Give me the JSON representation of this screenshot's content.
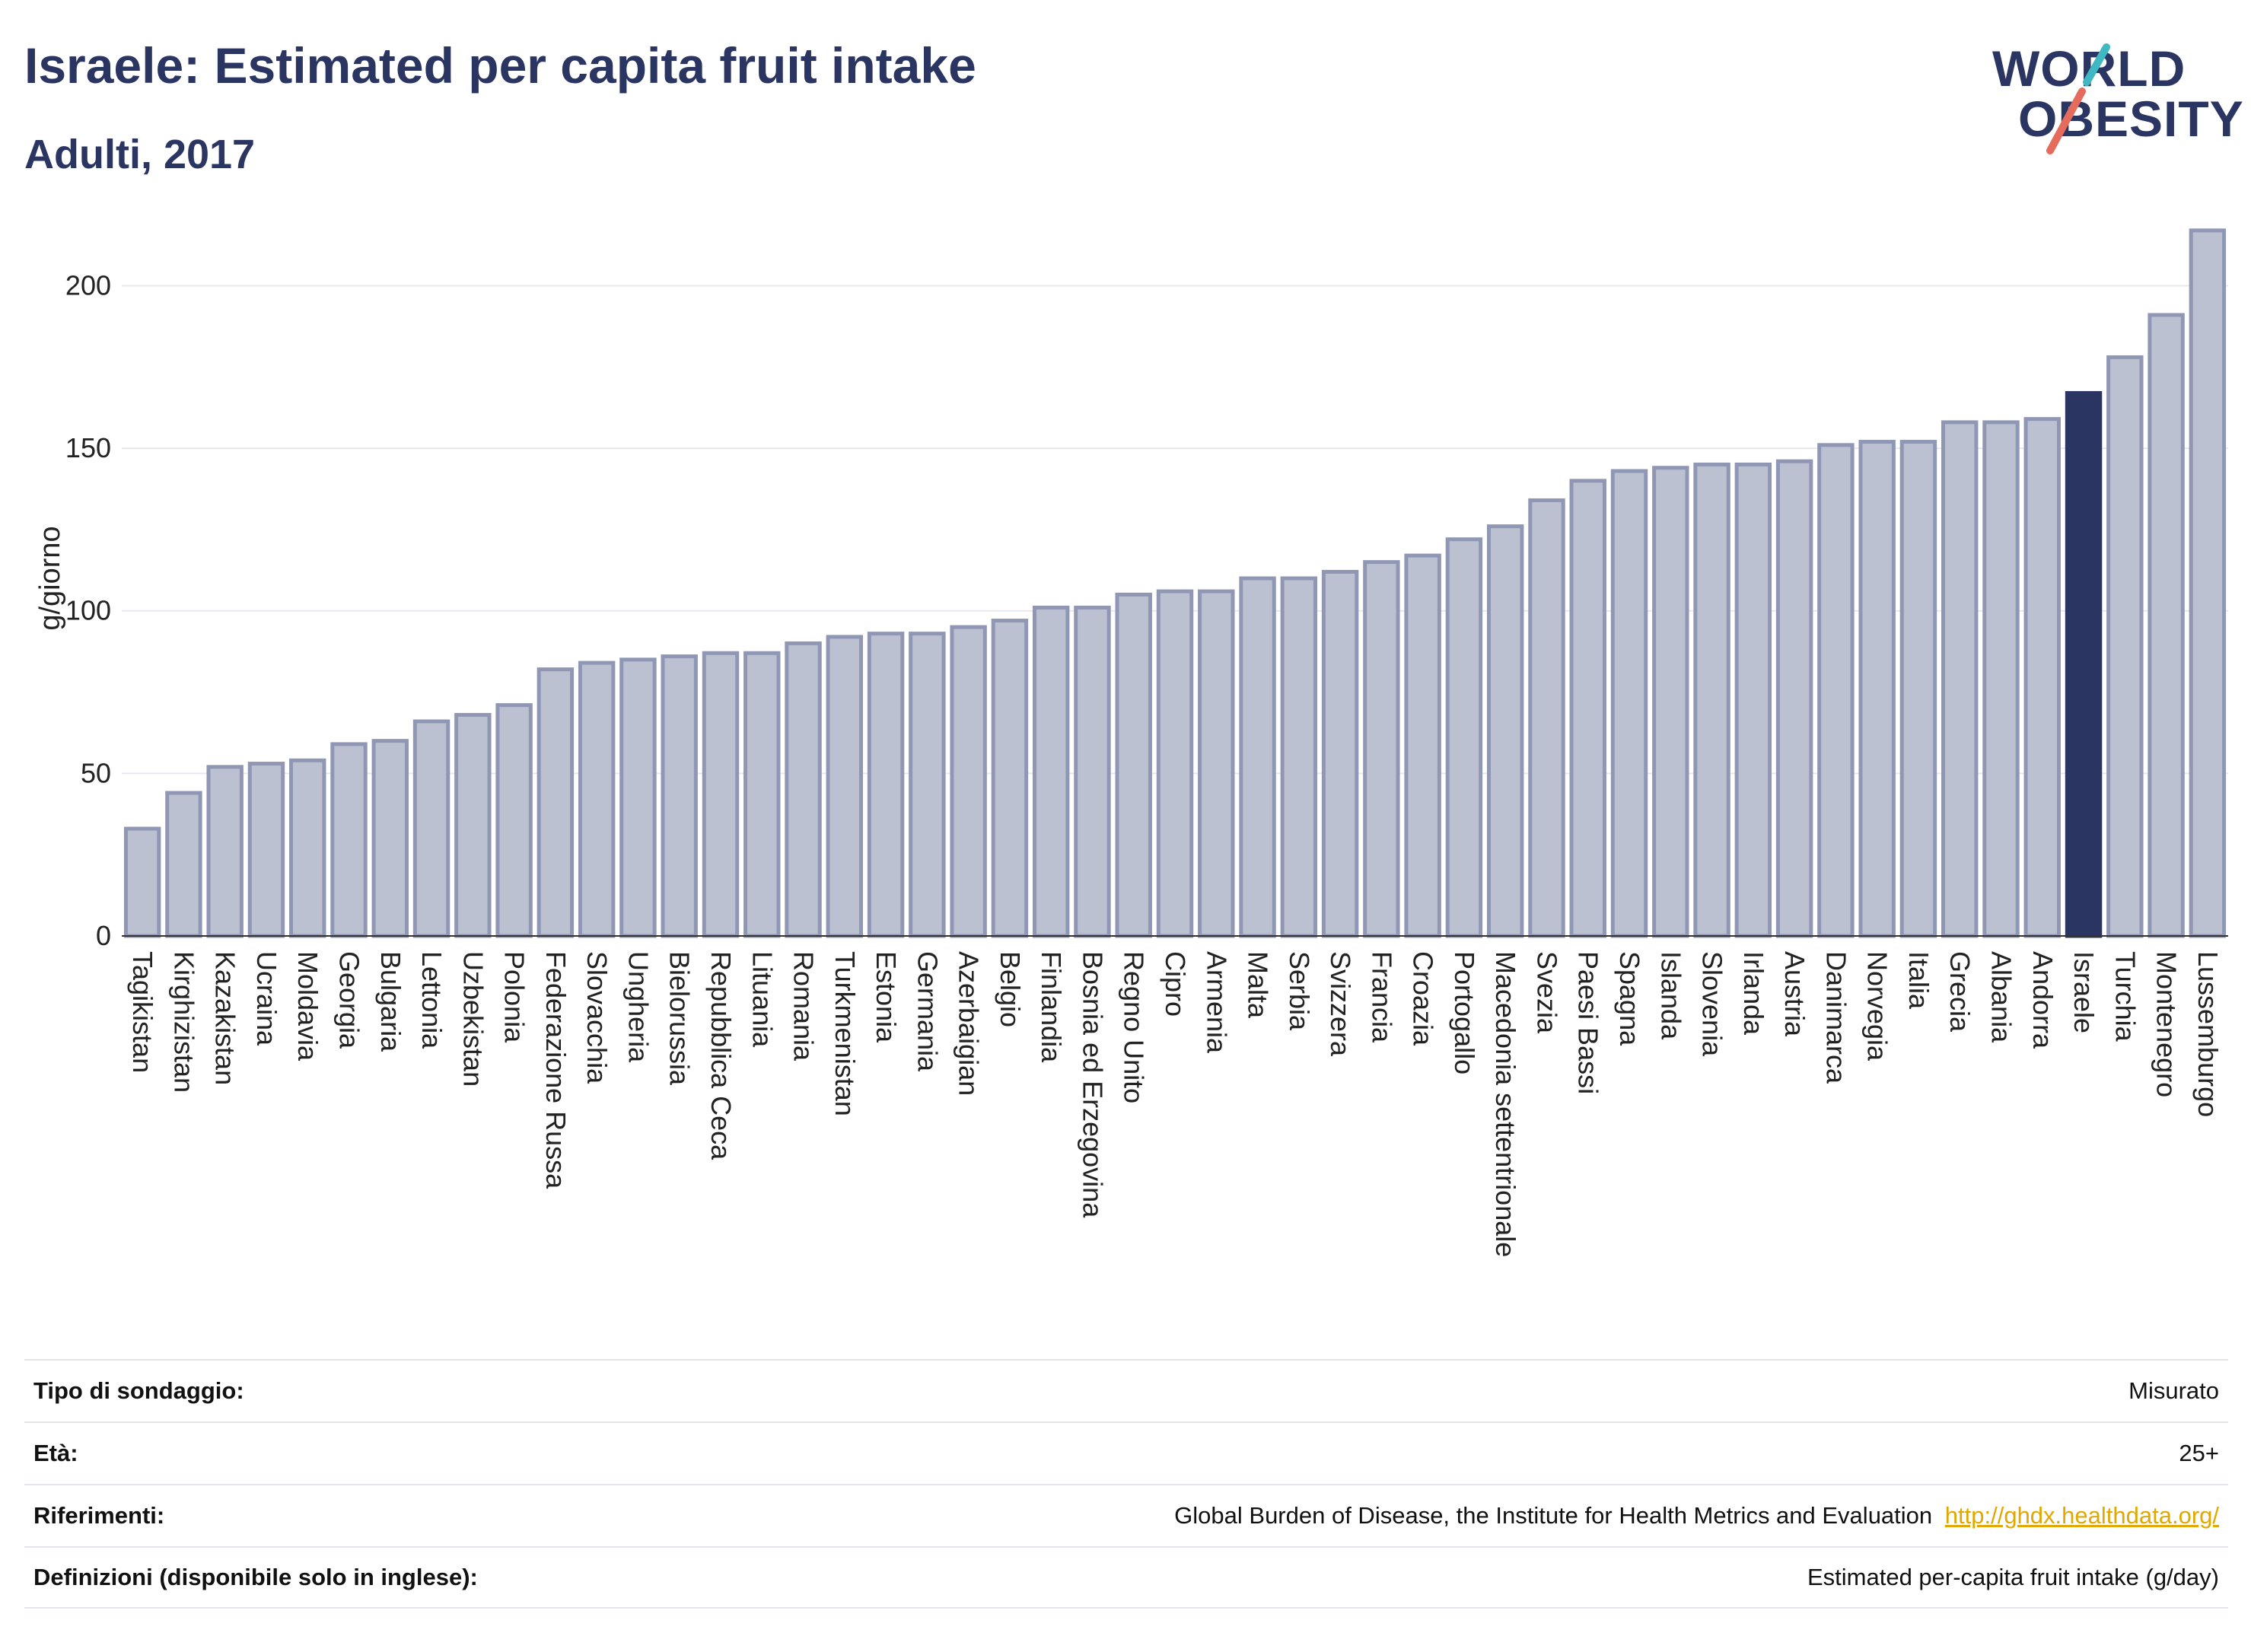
{
  "header": {
    "title": "Israele: Estimated per capita fruit intake",
    "subtitle": "Adulti, 2017"
  },
  "logo": {
    "line1": "WORLD",
    "line2": "OBESITY",
    "accent_teal": "#3fb8c1",
    "accent_coral": "#e56b5d"
  },
  "colors": {
    "bar_fill": "#bcc1d1",
    "bar_stroke": "#8f97b4",
    "highlight": "#2b3561",
    "grid": "#e8e9ee"
  },
  "chart_data": {
    "type": "bar",
    "ylabel": "g/giorno",
    "ylim": [
      0,
      220
    ],
    "yticks": [
      0,
      50,
      100,
      150,
      200
    ],
    "highlight": "Israele",
    "categories": [
      "Tagikistan",
      "Kirghizistan",
      "Kazakistan",
      "Ucraina",
      "Moldavia",
      "Georgia",
      "Bulgaria",
      "Lettonia",
      "Uzbekistan",
      "Polonia",
      "Federazione Russa",
      "Slovacchia",
      "Ungheria",
      "Bielorussia",
      "Repubblica Ceca",
      "Lituania",
      "Romania",
      "Turkmenistan",
      "Estonia",
      "Germania",
      "Azerbaigian",
      "Belgio",
      "Finlandia",
      "Bosnia ed Erzegovina",
      "Regno Unito",
      "Cipro",
      "Armenia",
      "Malta",
      "Serbia",
      "Svizzera",
      "Francia",
      "Croazia",
      "Portogallo",
      "Macedonia settentrionale",
      "Svezia",
      "Paesi Bassi",
      "Spagna",
      "Islanda",
      "Slovenia",
      "Irlanda",
      "Austria",
      "Danimarca",
      "Norvegia",
      "Italia",
      "Grecia",
      "Albania",
      "Andorra",
      "Israele",
      "Turchia",
      "Montenegro",
      "Lussemburgo"
    ],
    "values": [
      33,
      44,
      52,
      53,
      54,
      59,
      60,
      66,
      68,
      71,
      82,
      84,
      85,
      86,
      87,
      87,
      90,
      92,
      93,
      93,
      95,
      97,
      101,
      101,
      105,
      106,
      106,
      110,
      110,
      112,
      115,
      117,
      122,
      126,
      134,
      140,
      143,
      144,
      145,
      145,
      146,
      151,
      152,
      152,
      158,
      158,
      159,
      167,
      178,
      191,
      217
    ]
  },
  "info": {
    "rows": [
      {
        "label": "Tipo di sondaggio:",
        "value": "Misurato"
      },
      {
        "label": "Età:",
        "value": "25+"
      },
      {
        "label": "Riferimenti:",
        "value": "Global Burden of Disease, the Institute for Health Metrics and Evaluation",
        "link": "http://ghdx.healthdata.org/"
      },
      {
        "label": "Definizioni (disponibile solo in inglese):",
        "value": "Estimated per-capita fruit intake (g/day)"
      }
    ]
  }
}
